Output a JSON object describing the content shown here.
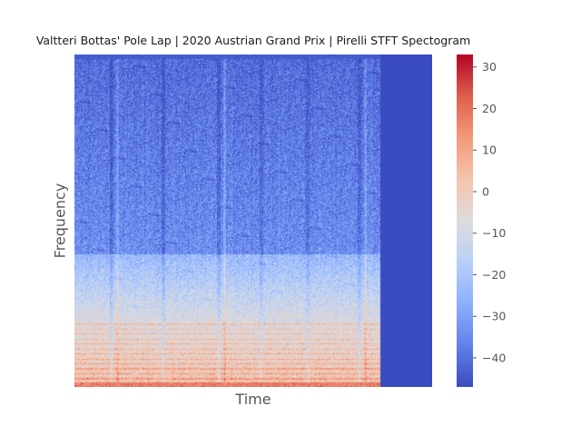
{
  "chart_data": {
    "type": "heatmap",
    "title": "Valtteri Bottas' Pole Lap | 2020 Austrian Grand Prix | Pirelli STFT Spectogram",
    "xlabel": "Time",
    "ylabel": "Frequency",
    "grid": false,
    "colormap": "coolwarm",
    "value_range": [
      -47,
      33
    ],
    "colorbar": {
      "position": "right",
      "ticks": [
        30,
        20,
        10,
        0,
        -10,
        -20,
        -30,
        -40
      ],
      "tick_labels": [
        "30",
        "20",
        "10",
        "0",
        "−10",
        "−20",
        "−30",
        "−40"
      ]
    },
    "signal_fraction_of_time_axis": 0.855,
    "padding_value": -47,
    "notes_visible": "no axis tick labels on time or frequency axes"
  },
  "colors": {
    "cold": "#3b4cc0",
    "neutral": "#dddcdc",
    "warm": "#b40426"
  }
}
